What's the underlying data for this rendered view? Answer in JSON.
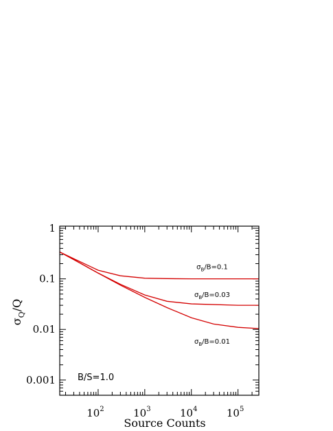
{
  "chart_data": {
    "type": "line",
    "title": "",
    "xlabel": "Source Counts",
    "ylabel": "σQ/Q",
    "xscale": "log",
    "yscale": "log",
    "xlim": [
      15,
      280000
    ],
    "ylim": [
      0.0005,
      1.1
    ],
    "grid": false,
    "x_ticks": [
      {
        "value": 100,
        "label": "10",
        "exp": "2"
      },
      {
        "value": 1000,
        "label": "10",
        "exp": "3"
      },
      {
        "value": 10000,
        "label": "10",
        "exp": "4"
      },
      {
        "value": 100000,
        "label": "10",
        "exp": "5"
      }
    ],
    "y_ticks": [
      {
        "value": 1,
        "label": "1"
      },
      {
        "value": 0.1,
        "label": "0.1"
      },
      {
        "value": 0.01,
        "label": "0.01"
      },
      {
        "value": 0.001,
        "label": "0.001"
      }
    ],
    "annotation": "B/S=1.0",
    "series": [
      {
        "name": "σB/B=0.1",
        "label_main": "σ",
        "label_sub": "B",
        "label_rest": "/B=0.1",
        "color": "#d40000",
        "x": [
          15,
          30,
          100,
          300,
          1000,
          3000,
          10000,
          100000,
          280000
        ],
        "y": [
          0.34,
          0.25,
          0.148,
          0.115,
          0.103,
          0.101,
          0.1,
          0.1,
          0.1
        ]
      },
      {
        "name": "σB/B=0.03",
        "label_main": "σ",
        "label_sub": "B",
        "label_rest": "/B=0.03",
        "color": "#d40000",
        "x": [
          15,
          30,
          100,
          300,
          1000,
          3000,
          10000,
          100000,
          280000
        ],
        "y": [
          0.34,
          0.24,
          0.13,
          0.078,
          0.048,
          0.036,
          0.032,
          0.03,
          0.03
        ]
      },
      {
        "name": "σB/B=0.01",
        "label_main": "σ",
        "label_sub": "B",
        "label_rest": "/B=0.01",
        "color": "#d40000",
        "x": [
          15,
          30,
          100,
          300,
          1000,
          3000,
          10000,
          30000,
          100000,
          280000
        ],
        "y": [
          0.34,
          0.24,
          0.13,
          0.075,
          0.043,
          0.027,
          0.017,
          0.0128,
          0.011,
          0.0104
        ]
      }
    ]
  }
}
